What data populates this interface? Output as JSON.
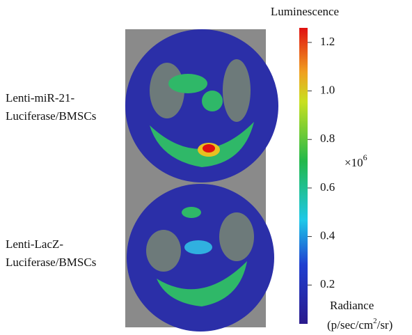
{
  "samples": [
    {
      "lines": [
        "Lenti-miR-21-",
        "Luciferase/BMSCs"
      ]
    },
    {
      "lines": [
        "Lenti-LacZ-",
        "Luciferase/BMSCs"
      ]
    }
  ],
  "colorbar": {
    "title": "Luminescence",
    "clim": [
      0.04,
      1.26
    ],
    "ticks": [
      0.2,
      0.4,
      0.6,
      0.8,
      {
        "value": 1,
        "label": "1.0"
      },
      1.2
    ],
    "multiplier": {
      "base": "×10",
      "exponent": "6"
    },
    "unit": {
      "line1": "Radiance",
      "line2_start": "(p/sec/cm",
      "line2_sup": "2",
      "line2_end": "/sr)"
    }
  }
}
